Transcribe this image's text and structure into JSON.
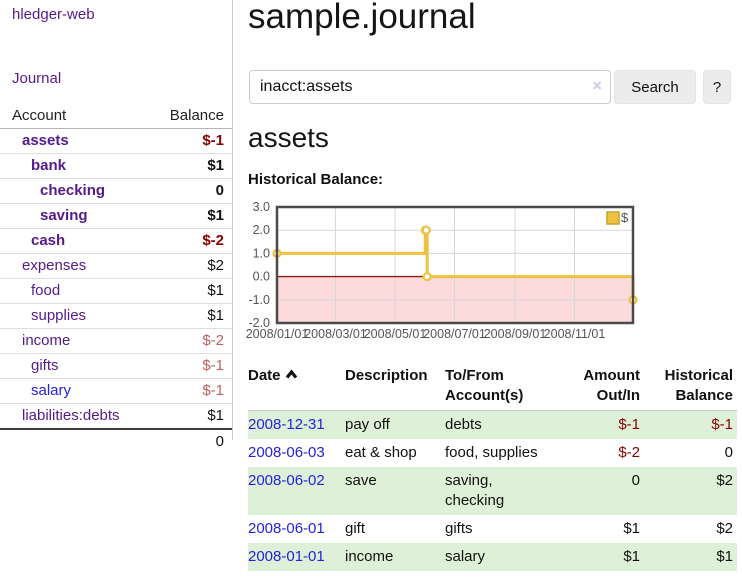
{
  "app": {
    "brand": "hledger-web"
  },
  "sidebar": {
    "journal_link": "Journal",
    "accounts": {
      "header": {
        "account": "Account",
        "balance": "Balance"
      },
      "rows": [
        {
          "name": "assets",
          "balance": "$-1",
          "level": 1,
          "bold": true,
          "balance_style": "neg-strong",
          "link_style": "purple"
        },
        {
          "name": "bank",
          "balance": "$1",
          "level": 2,
          "bold": true,
          "balance_style": "normal",
          "link_style": "purple"
        },
        {
          "name": "checking",
          "balance": "0",
          "level": 3,
          "bold": true,
          "balance_style": "normal",
          "link_style": "purple"
        },
        {
          "name": "saving",
          "balance": "$1",
          "level": 3,
          "bold": true,
          "balance_style": "normal",
          "link_style": "purple"
        },
        {
          "name": "cash",
          "balance": "$-2",
          "level": 2,
          "bold": true,
          "balance_style": "neg-strong",
          "link_style": "purple"
        },
        {
          "name": "expenses",
          "balance": "$2",
          "level": 1,
          "bold": false,
          "balance_style": "normal",
          "link_style": "purple"
        },
        {
          "name": "food",
          "balance": "$1",
          "level": 2,
          "bold": false,
          "balance_style": "normal",
          "link_style": "purple"
        },
        {
          "name": "supplies",
          "balance": "$1",
          "level": 2,
          "bold": false,
          "balance_style": "normal",
          "link_style": "purple"
        },
        {
          "name": "income",
          "balance": "$-2",
          "level": 1,
          "bold": false,
          "balance_style": "neg-soft",
          "link_style": "purple"
        },
        {
          "name": "gifts",
          "balance": "$-1",
          "level": 2,
          "bold": false,
          "balance_style": "neg-soft",
          "link_style": "purple"
        },
        {
          "name": "salary",
          "balance": "$-1",
          "level": 2,
          "bold": false,
          "balance_style": "neg-soft",
          "link_style": "blue"
        },
        {
          "name": "liabilities:debts",
          "balance": "$1",
          "level": 1,
          "bold": false,
          "balance_style": "normal",
          "link_style": "purple"
        }
      ],
      "total": "0"
    }
  },
  "main": {
    "title": "sample.journal",
    "search": {
      "value": "inacct:assets",
      "clear_icon": "×",
      "search_button": "Search",
      "help_button": "?"
    },
    "account_heading": "assets",
    "register": {
      "headers": {
        "date": "Date",
        "description": "Description",
        "accounts": "To/From Account(s)",
        "amount": "Amount Out/In",
        "balance": "Historical Balance"
      },
      "rows": [
        {
          "date": "2008-12-31",
          "description": "pay off",
          "accounts": "debts",
          "amount": "$-1",
          "balance": "$-1",
          "amount_style": "neg",
          "balance_style": "neg"
        },
        {
          "date": "2008-06-03",
          "description": "eat & shop",
          "accounts": "food, supplies",
          "amount": "$-2",
          "balance": "0",
          "amount_style": "neg",
          "balance_style": "normal"
        },
        {
          "date": "2008-06-02",
          "description": "save",
          "accounts": "saving, checking",
          "amount": "0",
          "balance": "$2",
          "amount_style": "normal",
          "balance_style": "normal"
        },
        {
          "date": "2008-06-01",
          "description": "gift",
          "accounts": "gifts",
          "amount": "$1",
          "balance": "$2",
          "amount_style": "normal",
          "balance_style": "normal"
        },
        {
          "date": "2008-01-01",
          "description": "income",
          "accounts": "salary",
          "amount": "$1",
          "balance": "$1",
          "amount_style": "normal",
          "balance_style": "normal"
        }
      ]
    }
  },
  "chart_data": {
    "type": "line",
    "step": true,
    "title": "Historical Balance:",
    "series": [
      {
        "name": "$",
        "color": "#edc240",
        "points": [
          {
            "x": "2008-01-01",
            "y": 1
          },
          {
            "x": "2008-06-01",
            "y": 2
          },
          {
            "x": "2008-06-02",
            "y": 2
          },
          {
            "x": "2008-06-03",
            "y": 0
          },
          {
            "x": "2008-12-31",
            "y": -1
          }
        ]
      }
    ],
    "xlim": [
      "2008-01-01",
      "2008-12-31"
    ],
    "ylim": [
      -2,
      3
    ],
    "yticks": [
      {
        "v": 3,
        "label": "3.0"
      },
      {
        "v": 2,
        "label": "2.0"
      },
      {
        "v": 1,
        "label": "1.0"
      },
      {
        "v": 0,
        "label": "0.0"
      },
      {
        "v": -1,
        "label": "-1.0"
      },
      {
        "v": -2,
        "label": "-2.0"
      }
    ],
    "xticks": [
      {
        "pos": "2008-01-01",
        "label": "2008/01/01"
      },
      {
        "pos": "2008-03-01",
        "label": "2008/03/01"
      },
      {
        "pos": "2008-05-01",
        "label": "2008/05/01"
      },
      {
        "pos": "2008-07-01",
        "label": "2008/07/01"
      },
      {
        "pos": "2008-09-01",
        "label": "2008/09/01"
      },
      {
        "pos": "2008-11-01",
        "label": "2008/11/01"
      }
    ],
    "legend": {
      "label": "$",
      "position": "top-right"
    },
    "grid": true,
    "negative_region_color": "#fbdbdb",
    "zero_line_color": "#8b1a1a",
    "frame_color": "#4a4a4a",
    "grid_color": "#d7d7d7",
    "axis_label_color": "#545454"
  },
  "colors": {
    "link_purple": "#551a8b",
    "link_blue": "#2323dd",
    "neg_strong": "#8b0000",
    "neg_soft": "#bf5f5f",
    "row_green": "#dff0d8",
    "button_bg": "#ececec",
    "divider": "#cccccc",
    "chart_line": "#edc240"
  }
}
